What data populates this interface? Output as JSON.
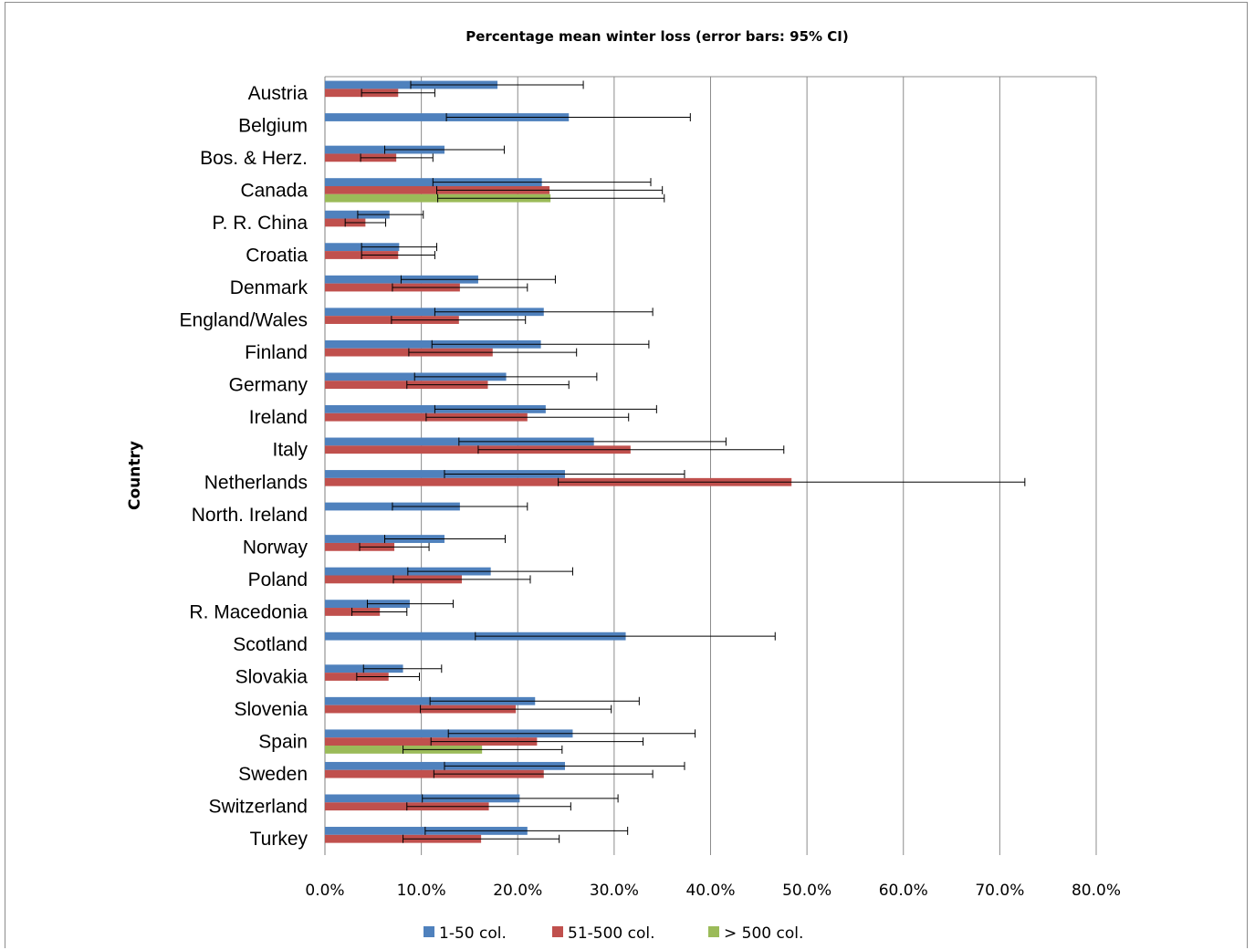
{
  "chart_data": {
    "type": "bar",
    "orientation": "horizontal",
    "title": "Percentage mean winter loss (error bars: 95% CI)",
    "ylabel": "Country",
    "xlabel": "",
    "xlim": [
      0,
      80
    ],
    "x_ticks": [
      "0.0%",
      "10.0%",
      "20.0%",
      "30.0%",
      "40.0%",
      "50.0%",
      "60.0%",
      "70.0%",
      "80.0%"
    ],
    "grid": "vertical",
    "legend_position": "bottom",
    "categories": [
      "Austria",
      "Belgium",
      "Bos. & Herz.",
      "Canada",
      "P. R. China",
      "Croatia",
      "Denmark",
      "England/Wales",
      "Finland",
      "Germany",
      "Ireland",
      "Italy",
      "Netherlands",
      "North. Ireland",
      "Norway",
      "Poland",
      "R. Macedonia",
      "Scotland",
      "Slovakia",
      "Slovenia",
      "Spain",
      "Sweden",
      "Switzerland",
      "Turkey"
    ],
    "series": [
      {
        "name": "1-50 col.",
        "color": "#4f81bd",
        "values": [
          17.9,
          25.3,
          12.4,
          22.5,
          6.7,
          7.7,
          15.9,
          22.7,
          22.4,
          18.8,
          22.9,
          27.9,
          24.9,
          14.0,
          12.4,
          17.2,
          8.8,
          31.2,
          8.1,
          21.8,
          25.7,
          24.9,
          20.2,
          21.0
        ],
        "ci_low": [
          8.9,
          12.6,
          6.2,
          11.2,
          3.4,
          3.8,
          7.9,
          11.4,
          11.1,
          9.3,
          11.4,
          13.9,
          12.4,
          7.0,
          6.2,
          8.6,
          4.4,
          15.6,
          4.0,
          10.9,
          12.8,
          12.4,
          10.1,
          10.4
        ],
        "ci_high": [
          26.8,
          37.9,
          18.6,
          33.8,
          10.2,
          11.6,
          23.9,
          34.0,
          33.6,
          28.2,
          34.4,
          41.6,
          37.3,
          21.0,
          18.7,
          25.7,
          13.3,
          46.7,
          12.1,
          32.6,
          38.4,
          37.3,
          30.4,
          31.4
        ]
      },
      {
        "name": "51-500 col.",
        "color": "#c0504d",
        "values": [
          7.6,
          null,
          7.4,
          23.3,
          4.2,
          7.6,
          14.0,
          13.9,
          17.4,
          16.9,
          21.0,
          31.7,
          48.4,
          null,
          7.2,
          14.2,
          5.7,
          null,
          6.6,
          19.8,
          22.0,
          22.7,
          17.0,
          16.2
        ],
        "ci_low": [
          3.8,
          null,
          3.7,
          11.6,
          2.1,
          3.8,
          7.0,
          6.9,
          8.7,
          8.5,
          10.5,
          15.9,
          24.2,
          null,
          3.6,
          7.1,
          2.8,
          null,
          3.3,
          9.9,
          11.0,
          11.3,
          8.5,
          8.1
        ],
        "ci_high": [
          11.4,
          null,
          11.2,
          35.0,
          6.3,
          11.4,
          21.0,
          20.8,
          26.1,
          25.3,
          31.5,
          47.6,
          72.6,
          null,
          10.8,
          21.3,
          8.5,
          null,
          9.8,
          29.7,
          33.0,
          34.0,
          25.5,
          24.3
        ]
      },
      {
        "name": "> 500 col.",
        "color": "#9bbb59",
        "values": [
          null,
          null,
          null,
          23.4,
          null,
          null,
          null,
          null,
          null,
          null,
          null,
          null,
          null,
          null,
          null,
          null,
          null,
          null,
          null,
          null,
          16.3,
          null,
          null,
          null
        ],
        "ci_low": [
          null,
          null,
          null,
          11.7,
          null,
          null,
          null,
          null,
          null,
          null,
          null,
          null,
          null,
          null,
          null,
          null,
          null,
          null,
          null,
          null,
          8.1,
          null,
          null,
          null
        ],
        "ci_high": [
          null,
          null,
          null,
          35.2,
          null,
          null,
          null,
          null,
          null,
          null,
          null,
          null,
          null,
          null,
          null,
          null,
          null,
          null,
          null,
          null,
          24.6,
          null,
          null,
          null
        ]
      }
    ]
  }
}
